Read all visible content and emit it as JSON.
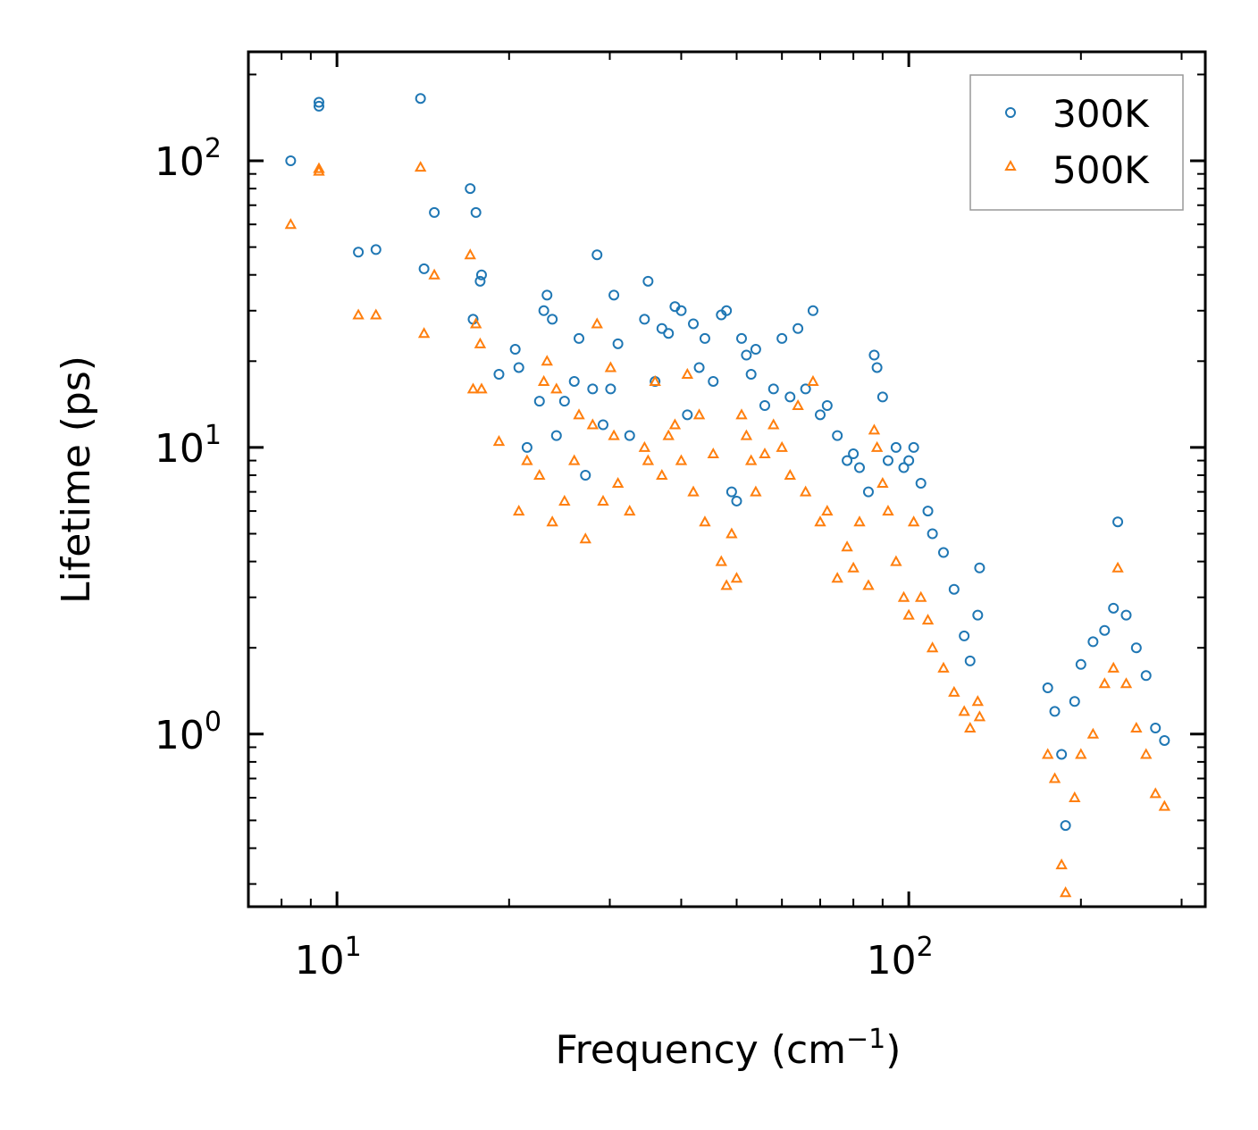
{
  "chart_data": {
    "type": "scatter",
    "xscale": "log",
    "yscale": "log",
    "xlabel": "Frequency (cm",
    "xlabel_sup": "−1",
    "xlabel_end": ")",
    "ylabel": "Lifetime (ps)",
    "xlim": [
      7,
      330
    ],
    "ylim": [
      0.25,
      240
    ],
    "x_ticks": [
      {
        "value": 10,
        "base": "10",
        "exp": "1"
      },
      {
        "value": 100,
        "base": "10",
        "exp": "2"
      }
    ],
    "y_ticks": [
      {
        "value": 1,
        "base": "10",
        "exp": "0"
      },
      {
        "value": 10,
        "base": "10",
        "exp": "1"
      },
      {
        "value": 100,
        "base": "10",
        "exp": "2"
      }
    ],
    "legend_position": "top-right",
    "series": [
      {
        "name": "300K",
        "color": "#1f77b4",
        "marker": "circle",
        "points": [
          [
            8.3,
            100
          ],
          [
            9.3,
            155
          ],
          [
            9.3,
            160
          ],
          [
            10.9,
            48
          ],
          [
            11.7,
            49
          ],
          [
            14.0,
            165
          ],
          [
            14.2,
            42
          ],
          [
            14.8,
            66
          ],
          [
            17.1,
            80
          ],
          [
            17.3,
            28
          ],
          [
            17.5,
            66
          ],
          [
            17.8,
            38
          ],
          [
            17.9,
            40
          ],
          [
            19.2,
            18
          ],
          [
            20.5,
            22
          ],
          [
            20.8,
            19
          ],
          [
            21.5,
            10
          ],
          [
            22.6,
            14.5
          ],
          [
            23.0,
            30
          ],
          [
            23.3,
            34
          ],
          [
            23.8,
            28
          ],
          [
            24.2,
            11
          ],
          [
            25.0,
            14.5
          ],
          [
            26.0,
            17
          ],
          [
            26.5,
            24
          ],
          [
            27.2,
            8
          ],
          [
            28.0,
            16
          ],
          [
            28.5,
            47
          ],
          [
            29.2,
            12
          ],
          [
            30.1,
            16
          ],
          [
            30.5,
            34
          ],
          [
            31.0,
            23
          ],
          [
            32.5,
            11
          ],
          [
            34.5,
            28
          ],
          [
            35.0,
            38
          ],
          [
            36.0,
            17
          ],
          [
            37.0,
            26
          ],
          [
            38.0,
            25
          ],
          [
            39.0,
            31
          ],
          [
            40.0,
            30
          ],
          [
            41.0,
            13
          ],
          [
            42.0,
            27
          ],
          [
            43.0,
            19
          ],
          [
            44.0,
            24
          ],
          [
            45.5,
            17
          ],
          [
            47.0,
            29
          ],
          [
            48.0,
            30
          ],
          [
            49.0,
            7
          ],
          [
            50.0,
            6.5
          ],
          [
            51.0,
            24
          ],
          [
            52.0,
            21
          ],
          [
            53.0,
            18
          ],
          [
            54.0,
            22
          ],
          [
            56.0,
            14
          ],
          [
            58.0,
            16
          ],
          [
            60.0,
            24
          ],
          [
            62.0,
            15
          ],
          [
            64.0,
            26
          ],
          [
            66.0,
            16
          ],
          [
            68.0,
            30
          ],
          [
            70.0,
            13
          ],
          [
            72.0,
            14
          ],
          [
            75.0,
            11
          ],
          [
            78.0,
            9
          ],
          [
            80.0,
            9.5
          ],
          [
            82.0,
            8.5
          ],
          [
            85.0,
            7
          ],
          [
            87.0,
            21
          ],
          [
            88.0,
            19
          ],
          [
            90.0,
            15
          ],
          [
            92.0,
            9
          ],
          [
            95.0,
            10
          ],
          [
            98.0,
            8.5
          ],
          [
            100.0,
            9
          ],
          [
            102.0,
            10
          ],
          [
            105.0,
            7.5
          ],
          [
            108.0,
            6
          ],
          [
            110.0,
            5
          ],
          [
            115.0,
            4.3
          ],
          [
            120.0,
            3.2
          ],
          [
            125.0,
            2.2
          ],
          [
            128.0,
            1.8
          ],
          [
            132.0,
            2.6
          ],
          [
            133.0,
            3.8
          ],
          [
            175.0,
            1.45
          ],
          [
            180.0,
            1.2
          ],
          [
            185.0,
            0.85
          ],
          [
            188.0,
            0.48
          ],
          [
            195.0,
            1.3
          ],
          [
            200.0,
            1.75
          ],
          [
            210.0,
            2.1
          ],
          [
            220.0,
            2.3
          ],
          [
            228.0,
            2.75
          ],
          [
            232.0,
            5.5
          ],
          [
            240.0,
            2.6
          ],
          [
            250.0,
            2.0
          ],
          [
            260.0,
            1.6
          ],
          [
            270.0,
            1.05
          ],
          [
            280.0,
            0.95
          ]
        ]
      },
      {
        "name": "500K",
        "color": "#ff7f0e",
        "marker": "triangle",
        "points": [
          [
            8.3,
            60
          ],
          [
            9.3,
            92
          ],
          [
            9.3,
            94
          ],
          [
            10.9,
            29
          ],
          [
            11.7,
            29
          ],
          [
            14.0,
            95
          ],
          [
            14.2,
            25
          ],
          [
            14.8,
            40
          ],
          [
            17.1,
            47
          ],
          [
            17.3,
            16
          ],
          [
            17.5,
            27
          ],
          [
            17.8,
            23
          ],
          [
            17.9,
            16
          ],
          [
            19.2,
            10.5
          ],
          [
            20.8,
            6
          ],
          [
            21.5,
            9
          ],
          [
            22.6,
            8
          ],
          [
            23.0,
            17
          ],
          [
            23.3,
            20
          ],
          [
            23.8,
            5.5
          ],
          [
            24.2,
            16
          ],
          [
            25.0,
            6.5
          ],
          [
            26.0,
            9
          ],
          [
            26.5,
            13
          ],
          [
            27.2,
            4.8
          ],
          [
            28.0,
            12
          ],
          [
            28.5,
            27
          ],
          [
            29.2,
            6.5
          ],
          [
            30.1,
            19
          ],
          [
            30.5,
            11
          ],
          [
            31.0,
            7.5
          ],
          [
            32.5,
            6
          ],
          [
            34.5,
            10
          ],
          [
            35.0,
            9
          ],
          [
            36.0,
            17
          ],
          [
            37.0,
            8
          ],
          [
            38.0,
            11
          ],
          [
            39.0,
            12
          ],
          [
            40.0,
            9
          ],
          [
            41.0,
            18
          ],
          [
            42.0,
            7
          ],
          [
            43.0,
            13
          ],
          [
            44.0,
            5.5
          ],
          [
            45.5,
            9.5
          ],
          [
            47.0,
            4
          ],
          [
            48.0,
            3.3
          ],
          [
            49.0,
            5
          ],
          [
            50.0,
            3.5
          ],
          [
            51.0,
            13
          ],
          [
            52.0,
            11
          ],
          [
            53.0,
            9
          ],
          [
            54.0,
            7
          ],
          [
            56.0,
            9.5
          ],
          [
            58.0,
            12
          ],
          [
            60.0,
            10
          ],
          [
            62.0,
            8
          ],
          [
            64.0,
            14
          ],
          [
            66.0,
            7
          ],
          [
            68.0,
            17
          ],
          [
            70.0,
            5.5
          ],
          [
            72.0,
            6
          ],
          [
            75.0,
            3.5
          ],
          [
            78.0,
            4.5
          ],
          [
            80.0,
            3.8
          ],
          [
            82.0,
            5.5
          ],
          [
            85.0,
            3.3
          ],
          [
            87.0,
            11.5
          ],
          [
            88.0,
            10
          ],
          [
            90.0,
            7.5
          ],
          [
            92.0,
            6
          ],
          [
            95.0,
            4
          ],
          [
            98.0,
            3
          ],
          [
            100.0,
            2.6
          ],
          [
            102.0,
            5.5
          ],
          [
            105.0,
            3
          ],
          [
            108.0,
            2.5
          ],
          [
            110.0,
            2
          ],
          [
            115.0,
            1.7
          ],
          [
            120.0,
            1.4
          ],
          [
            125.0,
            1.2
          ],
          [
            128.0,
            1.05
          ],
          [
            132.0,
            1.3
          ],
          [
            133.0,
            1.15
          ],
          [
            175.0,
            0.85
          ],
          [
            180.0,
            0.7
          ],
          [
            185.0,
            0.35
          ],
          [
            188.0,
            0.28
          ],
          [
            195.0,
            0.6
          ],
          [
            200.0,
            0.85
          ],
          [
            210.0,
            1.0
          ],
          [
            220.0,
            1.5
          ],
          [
            228.0,
            1.7
          ],
          [
            232.0,
            3.8
          ],
          [
            240.0,
            1.5
          ],
          [
            250.0,
            1.05
          ],
          [
            260.0,
            0.85
          ],
          [
            270.0,
            0.62
          ],
          [
            280.0,
            0.56
          ]
        ]
      }
    ]
  }
}
